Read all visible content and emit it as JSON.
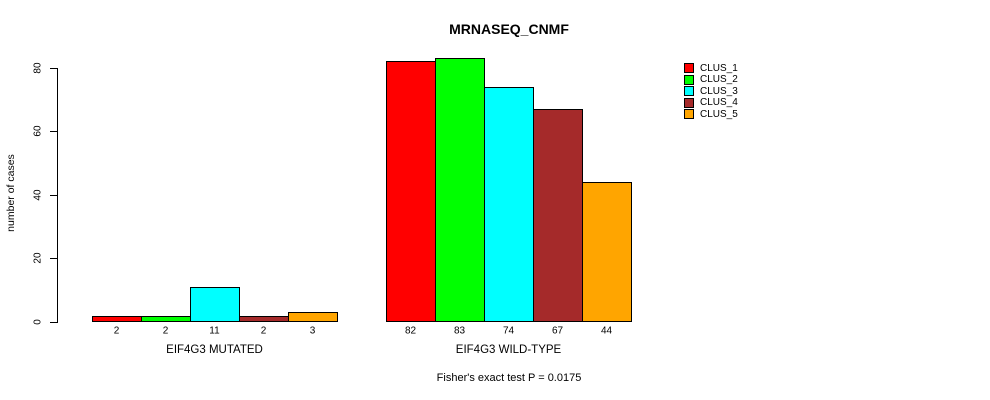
{
  "header": {
    "title": "MRNASEQ_CNMF"
  },
  "caption": "Fisher's exact test P = 0.0175",
  "chart_data": {
    "type": "bar",
    "categories": [
      "EIF4G3 MUTATED",
      "EIF4G3 WILD-TYPE"
    ],
    "series": [
      {
        "name": "CLUS_1",
        "color": "#FF0000",
        "values": [
          2,
          82
        ]
      },
      {
        "name": "CLUS_2",
        "color": "#00FF00",
        "values": [
          2,
          83
        ]
      },
      {
        "name": "CLUS_3",
        "color": "#00FFFF",
        "values": [
          11,
          74
        ]
      },
      {
        "name": "CLUS_4",
        "color": "#A52A2A",
        "values": [
          2,
          67
        ]
      },
      {
        "name": "CLUS_5",
        "color": "#FFA500",
        "values": [
          3,
          44
        ]
      }
    ],
    "title": "MRNASEQ_CNMF",
    "xlabel": "",
    "ylabel": "number of cases",
    "yticks": [
      0,
      20,
      40,
      60,
      80
    ],
    "ylim": [
      0,
      83
    ],
    "bar_value_labels_shown": true,
    "grid": false,
    "legend_position": "right",
    "annotation": "Fisher's exact test P = 0.0175"
  }
}
